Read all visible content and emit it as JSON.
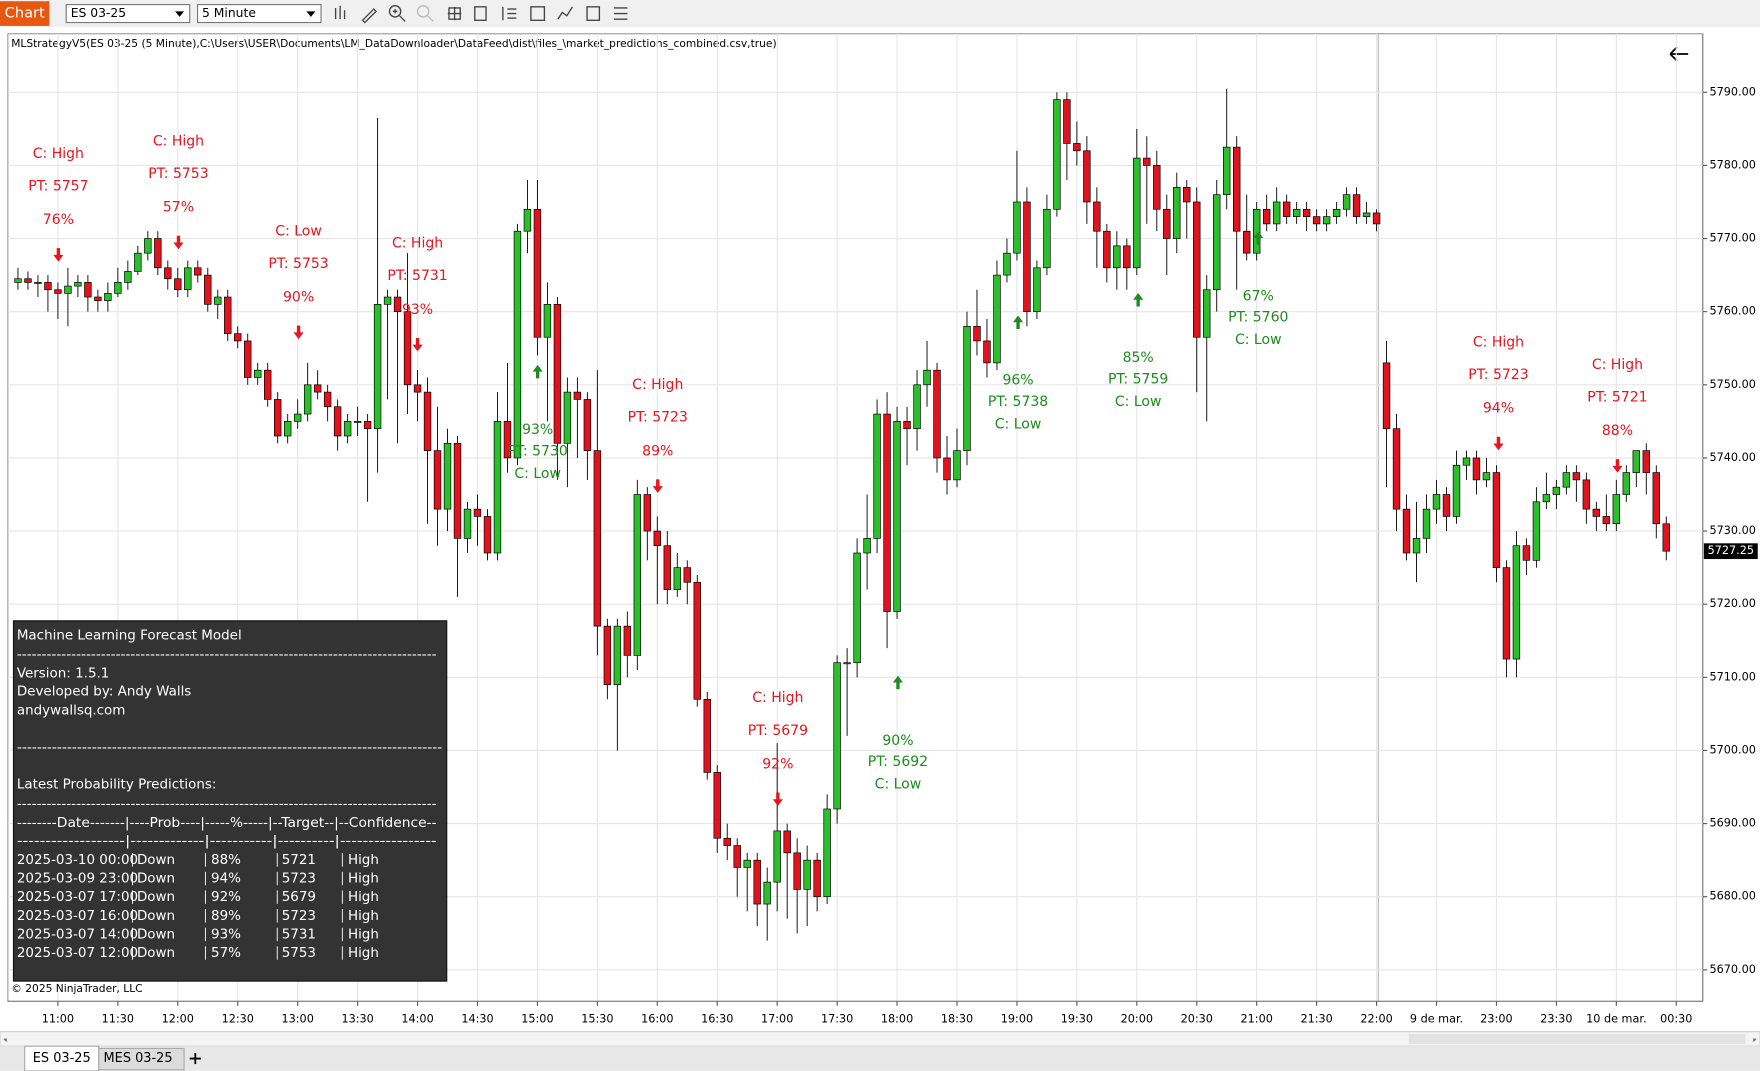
{
  "toolbar": {
    "chart_button": "Chart",
    "instrument": "ES 03-25",
    "interval": "5 Minute"
  },
  "chart_data": {
    "type": "candlestick",
    "title": "MLStrategyV5(ES 03-25 (5 Minute),C:\\Users\\USER\\Documents\\LM_DataDownloader\\DataFeed\\dist\\files_\\market_predictions_combined.csv,true)",
    "categories": [
      null,
      null,
      null,
      null,
      "11:00",
      null,
      null,
      null,
      null,
      null,
      "11:30",
      null,
      null,
      null,
      null,
      null,
      "12:00",
      null,
      null,
      null,
      null,
      null,
      "12:30",
      null,
      null,
      null,
      null,
      null,
      "13:00",
      null,
      null,
      null,
      null,
      null,
      "13:30",
      null,
      null,
      null,
      null,
      null,
      "14:00",
      null,
      null,
      null,
      null,
      null,
      "14:30",
      null,
      null,
      null,
      null,
      null,
      "15:00",
      null,
      null,
      null,
      null,
      null,
      "15:30",
      null,
      null,
      null,
      null,
      null,
      "16:00",
      null,
      null,
      null,
      null,
      null,
      "16:30",
      null,
      null,
      null,
      null,
      null,
      "17:00",
      null,
      null,
      null,
      null,
      null,
      "17:30",
      null,
      null,
      null,
      null,
      null,
      "18:00",
      null,
      null,
      null,
      null,
      null,
      "18:30",
      null,
      null,
      null,
      null,
      null,
      "19:00",
      null,
      null,
      null,
      null,
      null,
      "19:30",
      null,
      null,
      null,
      null,
      null,
      "20:00",
      null,
      null,
      null,
      null,
      null,
      "20:30",
      null,
      null,
      null,
      null,
      null,
      "21:00",
      null,
      null,
      null,
      null,
      null,
      "21:30",
      null,
      null,
      null,
      null,
      null,
      "22:00",
      null,
      null,
      null,
      null,
      null,
      "9 de mar.",
      null,
      null,
      null,
      null,
      null,
      "23:00",
      null,
      null,
      null,
      null,
      null,
      "23:30",
      null,
      null,
      null,
      null,
      null,
      "10 de mar.",
      null,
      null,
      null,
      null,
      null,
      "00:30"
    ],
    "open": [
      5764,
      5764.5,
      5764,
      5764,
      5763,
      5762.5,
      5763.5,
      5764,
      5762,
      5761.5,
      5762.5,
      5764,
      5765.5,
      5768,
      5770,
      5766,
      5764.5,
      5763,
      5766,
      5765,
      5761,
      5762,
      5757,
      5756,
      5751,
      5752,
      5748,
      5743,
      5745,
      5746,
      5750,
      5749,
      5747,
      5743,
      5745,
      5745,
      5744,
      5761,
      5762,
      5760,
      5750,
      5749,
      5741,
      5733,
      5742,
      5729,
      5733,
      5732,
      5727,
      5745,
      5740,
      5771,
      5774,
      5756.5,
      5761,
      5742,
      5749,
      5748,
      5741,
      5717,
      5709,
      5717,
      5713,
      5735,
      5730,
      5728,
      5722,
      5725,
      5723,
      5707,
      5697,
      5688,
      5687,
      5684,
      5685,
      5679,
      5682,
      5689,
      5686,
      5681,
      5685,
      5680,
      5692,
      5712,
      5712,
      5727,
      5729,
      5746,
      5719,
      5745,
      5744,
      5750,
      5752,
      5740,
      5737,
      5741,
      5758,
      5756,
      5753,
      5765,
      5768,
      5775,
      5760,
      5766,
      5774,
      5789,
      5783,
      5782,
      5775,
      5771,
      5766,
      5769,
      5766,
      5781,
      5780,
      5774,
      5770,
      5777,
      5775,
      5756.5,
      5763,
      5776,
      5782.5,
      5771,
      5768,
      5774,
      5772,
      5775,
      5773,
      5774,
      5773,
      5772,
      5773,
      5774,
      5776,
      5773,
      5773.5,
      5753,
      5744,
      5733,
      5727,
      5729,
      5733,
      5735,
      5732,
      5739,
      5740,
      5737,
      5738,
      5725,
      5712.5,
      5728,
      5726,
      5734,
      5735,
      5736,
      5738,
      5737,
      5733,
      5732,
      5731,
      5735,
      5738,
      5741,
      5738,
      5731,
      null
    ],
    "high": [
      5766,
      5765.5,
      5765,
      5765,
      5764,
      5766,
      5765,
      5765,
      5763,
      5764,
      5766,
      5767,
      5769,
      5771,
      5771,
      5767,
      5766,
      5767,
      5767,
      5766,
      5763,
      5763,
      5758,
      5757,
      5753,
      5753,
      5749,
      5746,
      5748,
      5753,
      5752,
      5750,
      5748,
      5746,
      5747,
      5746,
      5786.5,
      5763,
      5763,
      5768,
      5752,
      5751,
      5747,
      5744,
      5743,
      5734,
      5735,
      5733,
      5749,
      5753,
      5772,
      5778,
      5778,
      5764,
      5762,
      5751,
      5751,
      5749,
      5752,
      5718,
      5718,
      5719,
      5737,
      5736,
      5732,
      5730,
      5727,
      5726,
      5724,
      5708,
      5698,
      5690,
      5688,
      5686,
      5686,
      5684,
      5701,
      5690,
      5688,
      5687,
      5686,
      5694,
      5713,
      5714,
      5729,
      5735,
      5748,
      5749,
      5747,
      5747,
      5752,
      5756,
      5753,
      5743,
      5744,
      5760,
      5763,
      5759,
      5767,
      5770,
      5782,
      5777,
      5767,
      5776,
      5790,
      5790,
      5786,
      5784,
      5777,
      5772,
      5771,
      5770,
      5785,
      5784,
      5782,
      5776,
      5779,
      5778,
      5777,
      5765,
      5778,
      5790.5,
      5784,
      5776,
      5775,
      5776,
      5777,
      5776,
      5775,
      5775,
      5774,
      5774,
      5775,
      5777,
      5777,
      5775,
      5774,
      5756,
      5746,
      5735,
      5734,
      5735,
      5737,
      5736,
      5741,
      5741,
      5741,
      5740,
      5739,
      5726,
      5730,
      5729,
      5736,
      5738,
      5737,
      5739,
      5739,
      5738,
      5734,
      5735,
      5737,
      5739,
      5741,
      5742,
      5739,
      5732,
      null
    ],
    "low": [
      5763,
      5763,
      5762,
      5760,
      5759,
      5758,
      5762,
      5760,
      5760,
      5760,
      5762,
      5763,
      5765,
      5767,
      5765,
      5763,
      5762,
      5762,
      5764,
      5760,
      5759,
      5756,
      5755,
      5750,
      5750,
      5747,
      5742,
      5742,
      5744,
      5745,
      5748,
      5745,
      5741,
      5742,
      5743,
      5734,
      5738,
      5748,
      5742,
      5746,
      5745,
      5731,
      5728,
      5730,
      5721,
      5727,
      5728,
      5726,
      5726,
      5738,
      5739,
      5768,
      5754,
      5745,
      5737,
      5736,
      5740,
      5737,
      5713,
      5707,
      5700,
      5710,
      5711,
      5726,
      5720,
      5720,
      5721,
      5720,
      5706,
      5696,
      5686,
      5685,
      5680,
      5678,
      5676,
      5674,
      5678,
      5677,
      5675,
      5676,
      5678,
      5679,
      5690,
      5702,
      5710,
      5722,
      5727,
      5714,
      5718,
      5739,
      5741,
      5747,
      5738,
      5735,
      5736,
      5739,
      5754,
      5751,
      5752,
      5764,
      5767,
      5758,
      5759,
      5765,
      5773,
      5778,
      5780,
      5772,
      5766,
      5764,
      5763,
      5763,
      5765,
      5772,
      5771,
      5765,
      5768,
      5770,
      5749,
      5745,
      5760,
      5774,
      5763,
      5767,
      5767,
      5771,
      5771,
      5772,
      5772,
      5771,
      5771,
      5771,
      5772,
      5773,
      5772,
      5772,
      5771,
      5736,
      5730,
      5726,
      5723,
      5727,
      5731,
      5730,
      5731,
      5737,
      5735,
      5736,
      5723,
      5710,
      5710,
      5724,
      5725,
      5733,
      5733,
      5735,
      5734,
      5731,
      5730,
      5730,
      5730,
      5734,
      5736,
      5735,
      5729,
      5726,
      null
    ],
    "close": [
      5764.5,
      5764,
      5764,
      5763,
      5762.5,
      5763.5,
      5764,
      5762,
      5761.5,
      5762.5,
      5764,
      5765.5,
      5768,
      5770,
      5766,
      5764.5,
      5763,
      5766,
      5765,
      5761,
      5762,
      5757,
      5756,
      5751,
      5752,
      5748,
      5743,
      5745,
      5746,
      5750,
      5749,
      5747,
      5743,
      5745,
      5745,
      5744,
      5761,
      5762,
      5760,
      5750,
      5749,
      5741,
      5733,
      5742,
      5729,
      5733,
      5732,
      5727,
      5745,
      5740,
      5771,
      5774,
      5756.5,
      5761,
      5742,
      5749,
      5748,
      5741,
      5717,
      5709,
      5717,
      5713,
      5735,
      5730,
      5728,
      5722,
      5725,
      5723,
      5707,
      5697,
      5688,
      5687,
      5684,
      5685,
      5679,
      5682,
      5689,
      5686,
      5681,
      5685,
      5680,
      5692,
      5712,
      5712,
      5727,
      5729,
      5746,
      5719,
      5745,
      5744,
      5750,
      5752,
      5740,
      5737,
      5741,
      5758,
      5756,
      5753,
      5765,
      5768,
      5775,
      5760,
      5766,
      5774,
      5789,
      5783,
      5782,
      5775,
      5771,
      5766,
      5769,
      5766,
      5781,
      5780,
      5774,
      5770,
      5777,
      5775,
      5756.5,
      5763,
      5776,
      5782.5,
      5771,
      5768,
      5774,
      5772,
      5775,
      5773,
      5774,
      5773,
      5772,
      5773,
      5774,
      5776,
      5773,
      5773.5,
      5772,
      5744,
      5733,
      5727,
      5729,
      5733,
      5735,
      5732,
      5739,
      5740,
      5737,
      5738,
      5725,
      5712.5,
      5728,
      5726,
      5734,
      5735,
      5736,
      5738,
      5737,
      5733,
      5732,
      5731,
      5735,
      5738,
      5741,
      5738,
      5731,
      5727.25,
      null
    ],
    "up_color": "#2bbf2b",
    "down_color": "#e0141e",
    "ylim": [
      5665.7,
      5798
    ],
    "yticks": [
      {
        "value": 5670,
        "label": "5670.00"
      },
      {
        "value": 5680,
        "label": "5680.00"
      },
      {
        "value": 5690,
        "label": "5690.00"
      },
      {
        "value": 5700,
        "label": "5700.00"
      },
      {
        "value": 5710,
        "label": "5710.00"
      },
      {
        "value": 5720,
        "label": "5720.00"
      },
      {
        "value": 5730,
        "label": "5730.00"
      },
      {
        "value": 5740,
        "label": "5740.00"
      },
      {
        "value": 5750,
        "label": "5750.00"
      },
      {
        "value": 5760,
        "label": "5760.00"
      },
      {
        "value": 5770,
        "label": "5770.00"
      },
      {
        "value": 5780,
        "label": "5780.00"
      },
      {
        "value": 5790,
        "label": "5790.00"
      }
    ],
    "grid": true,
    "annotations": [
      {
        "lines": [
          "C: High",
          "PT: 5757",
          "76%"
        ],
        "color": "#e8141e"
      },
      {
        "lines": [
          "C: High",
          "PT: 5753",
          "57%"
        ],
        "color": "#e8141e"
      },
      {
        "lines": [
          "C: Low",
          "PT: 5753",
          "90%"
        ],
        "color": "#e8141e"
      },
      {
        "lines": [
          "C: High",
          "PT: 5731",
          "93%"
        ],
        "color": "#e8141e"
      },
      {
        "lines": [
          "93%",
          "PT: 5730",
          "C: Low"
        ],
        "color": "#1e8c1e"
      },
      {
        "lines": [
          "C: High",
          "PT: 5723",
          "89%"
        ],
        "color": "#e8141e"
      },
      {
        "lines": [
          "C: High",
          "PT: 5679",
          "92%"
        ],
        "color": "#e8141e"
      },
      {
        "lines": [
          "90%",
          "PT: 5692",
          "C: Low"
        ],
        "color": "#1e8c1e"
      },
      {
        "lines": [
          "96%",
          "PT: 5738",
          "C: Low"
        ],
        "color": "#1e8c1e"
      },
      {
        "lines": [
          "85%",
          "PT: 5759",
          "C: Low"
        ],
        "color": "#1e8c1e"
      },
      {
        "lines": [
          "67%",
          "PT: 5760",
          "C: Low"
        ],
        "color": "#1e8c1e"
      },
      {
        "lines": [
          "C: High",
          "PT: 5723",
          "94%"
        ],
        "color": "#e8141e"
      },
      {
        "lines": [
          "C: High",
          "PT: 5721",
          "88%"
        ],
        "color": "#e8141e"
      }
    ]
  },
  "info_panel": {
    "title": "Machine Learning Forecast Model",
    "rule": "-------------------------------------------------------------------------------------",
    "version": "Version: 1.5.1",
    "developer": "Developed by: Andy Walls",
    "website": "andywallsq.com",
    "section": "Latest Probability Predictions:",
    "header": "--------Date-------|----Prob----|-----%-----|--Target--|--Confidence--",
    "header_rule": "-------------------|-------------|-----------|----------|-----------------",
    "rows": [
      [
        "2025-03-10 00:00",
        "Down",
        "88%",
        "5721",
        "High"
      ],
      [
        "2025-03-09 23:00",
        "Down",
        "94%",
        "5723",
        "High"
      ],
      [
        "2025-03-07 17:00",
        "Down",
        "92%",
        "5679",
        "High"
      ],
      [
        "2025-03-07 16:00",
        "Down",
        "89%",
        "5723",
        "High"
      ],
      [
        "2025-03-07 14:00",
        "Down",
        "93%",
        "5731",
        "High"
      ],
      [
        "2025-03-07 12:00",
        "Down",
        "57%",
        "5753",
        "High"
      ]
    ]
  },
  "copyright": "© 2025 NinjaTrader, LLC",
  "tabs": [
    "ES 03-25",
    "MES 03-25"
  ]
}
